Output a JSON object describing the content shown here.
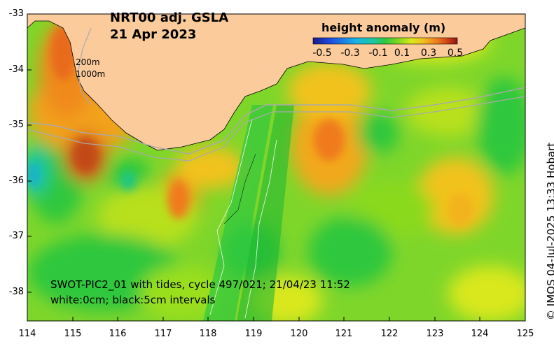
{
  "map": {
    "title_line1": "NRT00 adj. GSLA",
    "title_line2": "21 Apr 2023",
    "isobath_labels": [
      "200m",
      "1000m"
    ],
    "x_axis_labels": [
      "114",
      "115",
      "116",
      "117",
      "118",
      "119",
      "120",
      "121",
      "122",
      "123",
      "124",
      "125"
    ],
    "y_axis_labels": [
      "-33",
      "-34",
      "-35",
      "-36",
      "-37",
      "-38"
    ],
    "lon_range": [
      114,
      125
    ],
    "lat_range": [
      -38.5,
      -33
    ],
    "land_color": "#FBCB9C",
    "colorbar": {
      "title": "height anomaly (m)",
      "tick_labels": [
        "-0.5",
        "-0.3",
        "-0.1",
        "0.1",
        "0.3",
        "0.5"
      ],
      "colors": [
        "#1A1A8C",
        "#1E4BE0",
        "#19B4E6",
        "#1CC8A0",
        "#2FC73E",
        "#8AD91F",
        "#D9E81A",
        "#F2C21E",
        "#F07A1E",
        "#C83C14",
        "#8C1414"
      ]
    },
    "swot_caption_line1": "SWOT-PIC2_01 with tides, cycle 497/021; 21/04/23 11:52",
    "swot_caption_line2": "white:0cm; black:5cm intervals",
    "credit": "© IMOS 04-Jul-2025 13:33 Hobart"
  }
}
